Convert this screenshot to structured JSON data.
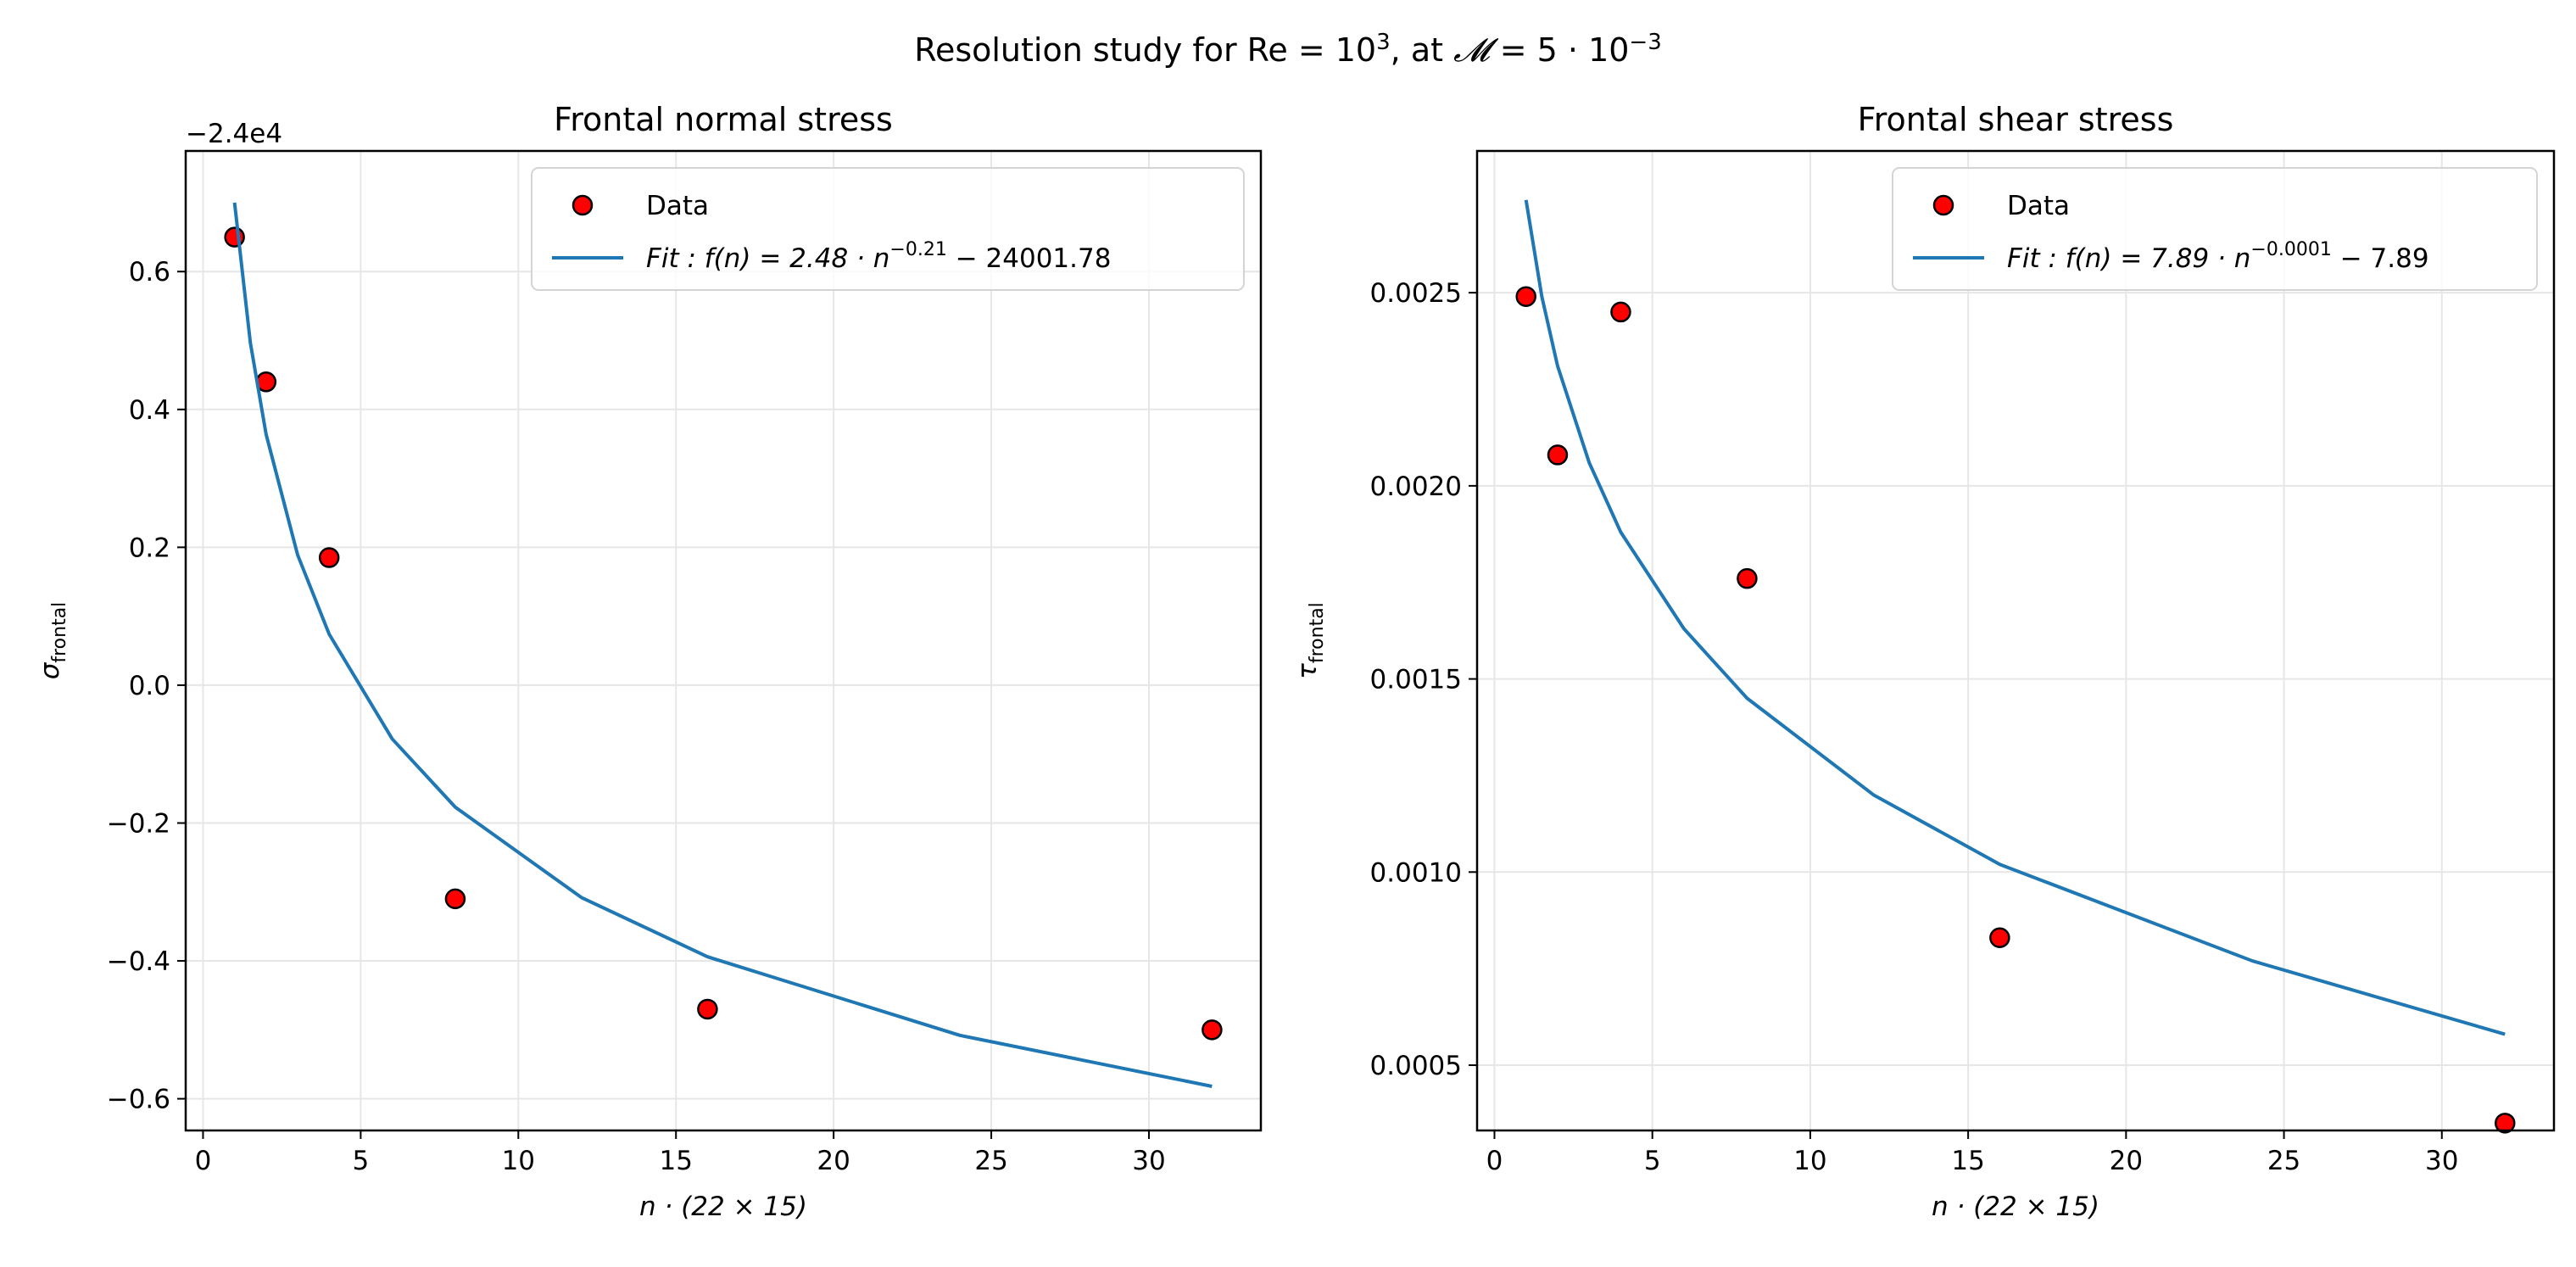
{
  "suptitle": {
    "prefix": "Resolution study for Re = 10",
    "exp1": "3",
    "mid": ", at ",
    "script_m": "𝓜",
    "rest": " = 5 · 10",
    "exp2": "−3"
  },
  "chart_data": [
    {
      "type": "scatter",
      "title": "Frontal normal stress",
      "xlabel": "n · (22 × 15)",
      "ylabel_symbol": "σ",
      "ylabel_sub": "frontal",
      "offset_text": "−2.4e4",
      "xlim": [
        -0.55,
        33.55
      ],
      "ylim": [
        -0.646,
        0.775
      ],
      "xticks": [
        0,
        5,
        10,
        15,
        20,
        25,
        30
      ],
      "xtick_labels": [
        "0",
        "5",
        "10",
        "15",
        "20",
        "25",
        "30"
      ],
      "yticks": [
        -0.6,
        -0.4,
        -0.2,
        0.0,
        0.2,
        0.4,
        0.6
      ],
      "ytick_labels": [
        "−0.6",
        "−0.4",
        "−0.2",
        "0.0",
        "0.2",
        "0.4",
        "0.6"
      ],
      "grid": true,
      "legend_placement": "upper right",
      "series": [
        {
          "name": "Data",
          "kind": "scatter",
          "color": "#ff0000",
          "edge": "#000000",
          "x": [
            1,
            2,
            4,
            8,
            16,
            32
          ],
          "y": [
            0.65,
            0.44,
            0.185,
            -0.31,
            -0.47,
            -0.5
          ]
        },
        {
          "name": "Fit : f(n) = 2.48 · n",
          "name_exp": "−0.21",
          "name_tail": " − 24001.78",
          "kind": "line",
          "color": "#1f77b4",
          "x": [
            1,
            1.5,
            2,
            3,
            4,
            6,
            8,
            12,
            16,
            24,
            32
          ],
          "y": [
            0.7,
            0.497,
            0.364,
            0.189,
            0.074,
            -0.078,
            -0.177,
            -0.308,
            -0.394,
            -0.508,
            -0.582
          ]
        }
      ]
    },
    {
      "type": "scatter",
      "title": "Frontal shear stress",
      "xlabel": "n · (22 × 15)",
      "ylabel_symbol": "τ",
      "ylabel_sub": "frontal",
      "offset_text": "",
      "xlim": [
        -0.55,
        33.55
      ],
      "ylim": [
        0.000331,
        0.002867
      ],
      "xticks": [
        0,
        5,
        10,
        15,
        20,
        25,
        30
      ],
      "xtick_labels": [
        "0",
        "5",
        "10",
        "15",
        "20",
        "25",
        "30"
      ],
      "yticks": [
        0.0005,
        0.001,
        0.0015,
        0.002,
        0.0025
      ],
      "ytick_labels": [
        "0.0005",
        "0.0010",
        "0.0015",
        "0.0020",
        "0.0025"
      ],
      "grid": true,
      "legend_placement": "upper right",
      "series": [
        {
          "name": "Data",
          "kind": "scatter",
          "color": "#ff0000",
          "edge": "#000000",
          "x": [
            1,
            2,
            4,
            8,
            16,
            32
          ],
          "y": [
            0.00249,
            0.00208,
            0.00245,
            0.00176,
            0.00083,
            0.00035
          ]
        },
        {
          "name": "Fit : f(n) = 7.89 · n",
          "name_exp": "−0.0001",
          "name_tail": " − 7.89",
          "kind": "line",
          "color": "#1f77b4",
          "x": [
            1,
            1.5,
            2,
            3,
            4,
            6,
            8,
            12,
            16,
            24,
            32
          ],
          "y": [
            0.00274,
            0.00249,
            0.00231,
            0.00206,
            0.00188,
            0.00163,
            0.00145,
            0.0012,
            0.00102,
            0.00077,
            0.00058
          ]
        }
      ]
    }
  ]
}
